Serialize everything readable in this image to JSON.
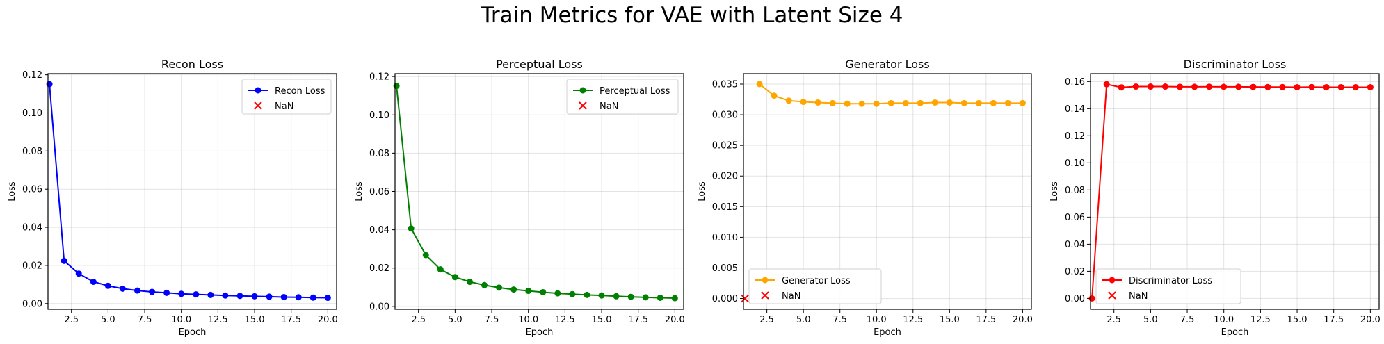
{
  "figure": {
    "title": "Train Metrics for VAE with Latent Size 4"
  },
  "chart_data": [
    {
      "type": "line",
      "title": "Recon Loss",
      "xlabel": "Epoch",
      "ylabel": "Loss",
      "xlim": [
        0.9,
        20.6
      ],
      "ylim": [
        -0.003,
        0.1206
      ],
      "xticks": [
        2.5,
        5.0,
        7.5,
        10.0,
        12.5,
        15.0,
        17.5,
        20.0
      ],
      "yticks": [
        0.0,
        0.02,
        0.04,
        0.06,
        0.08,
        0.1,
        0.12
      ],
      "ytick_decimals": 2,
      "grid": true,
      "legend_position": "upper right",
      "color": "#0000ff",
      "series": [
        {
          "name": "Recon Loss",
          "x": [
            1,
            2,
            3,
            4,
            5,
            6,
            7,
            8,
            9,
            10,
            11,
            12,
            13,
            14,
            15,
            16,
            17,
            18,
            19,
            20
          ],
          "values": [
            0.1151,
            0.0224,
            0.0157,
            0.0114,
            0.0093,
            0.0078,
            0.0068,
            0.0061,
            0.0056,
            0.0051,
            0.0048,
            0.0045,
            0.0042,
            0.004,
            0.0038,
            0.0036,
            0.0034,
            0.0033,
            0.0031,
            0.003
          ]
        }
      ],
      "nan_marker": {
        "name": "NaN",
        "color": "#ff0000",
        "points": []
      }
    },
    {
      "type": "line",
      "title": "Perceptual Loss",
      "xlabel": "Epoch",
      "ylabel": "Loss",
      "xlim": [
        0.9,
        20.6
      ],
      "ylim": [
        -0.0015,
        0.1215
      ],
      "xticks": [
        2.5,
        5.0,
        7.5,
        10.0,
        12.5,
        15.0,
        17.5,
        20.0
      ],
      "yticks": [
        0.0,
        0.02,
        0.04,
        0.06,
        0.08,
        0.1,
        0.12
      ],
      "ytick_decimals": 2,
      "grid": true,
      "legend_position": "upper right",
      "color": "#008000",
      "series": [
        {
          "name": "Perceptual Loss",
          "x": [
            1,
            2,
            3,
            4,
            5,
            6,
            7,
            8,
            9,
            10,
            11,
            12,
            13,
            14,
            15,
            16,
            17,
            18,
            19,
            20
          ],
          "values": [
            0.1151,
            0.0407,
            0.0268,
            0.0193,
            0.0153,
            0.0128,
            0.0111,
            0.0098,
            0.0088,
            0.0081,
            0.0074,
            0.0068,
            0.0064,
            0.006,
            0.0057,
            0.0053,
            0.005,
            0.0047,
            0.0045,
            0.0043
          ]
        }
      ],
      "nan_marker": {
        "name": "NaN",
        "color": "#ff0000",
        "points": []
      }
    },
    {
      "type": "line",
      "title": "Generator Loss",
      "xlabel": "Epoch",
      "ylabel": "Loss",
      "xlim": [
        0.9,
        20.6
      ],
      "ylim": [
        -0.00175,
        0.0367
      ],
      "xticks": [
        2.5,
        5.0,
        7.5,
        10.0,
        12.5,
        15.0,
        17.5,
        20.0
      ],
      "yticks": [
        0.0,
        0.005,
        0.01,
        0.015,
        0.02,
        0.025,
        0.03,
        0.035
      ],
      "ytick_decimals": 3,
      "grid": true,
      "legend_position": "lower left",
      "color": "#ffa500",
      "series": [
        {
          "name": "Generator Loss",
          "x": [
            2,
            3,
            4,
            5,
            6,
            7,
            8,
            9,
            10,
            11,
            12,
            13,
            14,
            15,
            16,
            17,
            18,
            19,
            20
          ],
          "values": [
            0.035,
            0.0331,
            0.0323,
            0.0321,
            0.032,
            0.0319,
            0.0318,
            0.0318,
            0.0318,
            0.0319,
            0.0319,
            0.0319,
            0.032,
            0.032,
            0.0319,
            0.0319,
            0.0319,
            0.0319,
            0.0319
          ]
        }
      ],
      "nan_marker": {
        "name": "NaN",
        "color": "#ff0000",
        "points": [
          [
            1,
            0
          ]
        ]
      }
    },
    {
      "type": "line",
      "title": "Discriminator Loss",
      "xlabel": "Epoch",
      "ylabel": "Loss",
      "xlim": [
        0.9,
        20.6
      ],
      "ylim": [
        -0.008,
        0.1658
      ],
      "xticks": [
        2.5,
        5.0,
        7.5,
        10.0,
        12.5,
        15.0,
        17.5,
        20.0
      ],
      "yticks": [
        0.0,
        0.02,
        0.04,
        0.06,
        0.08,
        0.1,
        0.12,
        0.14,
        0.16
      ],
      "ytick_decimals": 2,
      "grid": true,
      "legend_position": "lower left",
      "color": "#ff0000",
      "series": [
        {
          "name": "Discriminator Loss",
          "x": [
            1,
            2,
            3,
            4,
            5,
            6,
            7,
            8,
            9,
            10,
            11,
            12,
            13,
            14,
            15,
            16,
            17,
            18,
            19,
            20
          ],
          "values": [
            0.0,
            0.158,
            0.1557,
            0.1563,
            0.1563,
            0.1563,
            0.1561,
            0.1561,
            0.1562,
            0.1561,
            0.1561,
            0.156,
            0.1559,
            0.1559,
            0.1558,
            0.1559,
            0.1558,
            0.1558,
            0.1558,
            0.1558
          ]
        }
      ],
      "nan_marker": {
        "name": "NaN",
        "color": "#ff0000",
        "points": []
      }
    }
  ]
}
